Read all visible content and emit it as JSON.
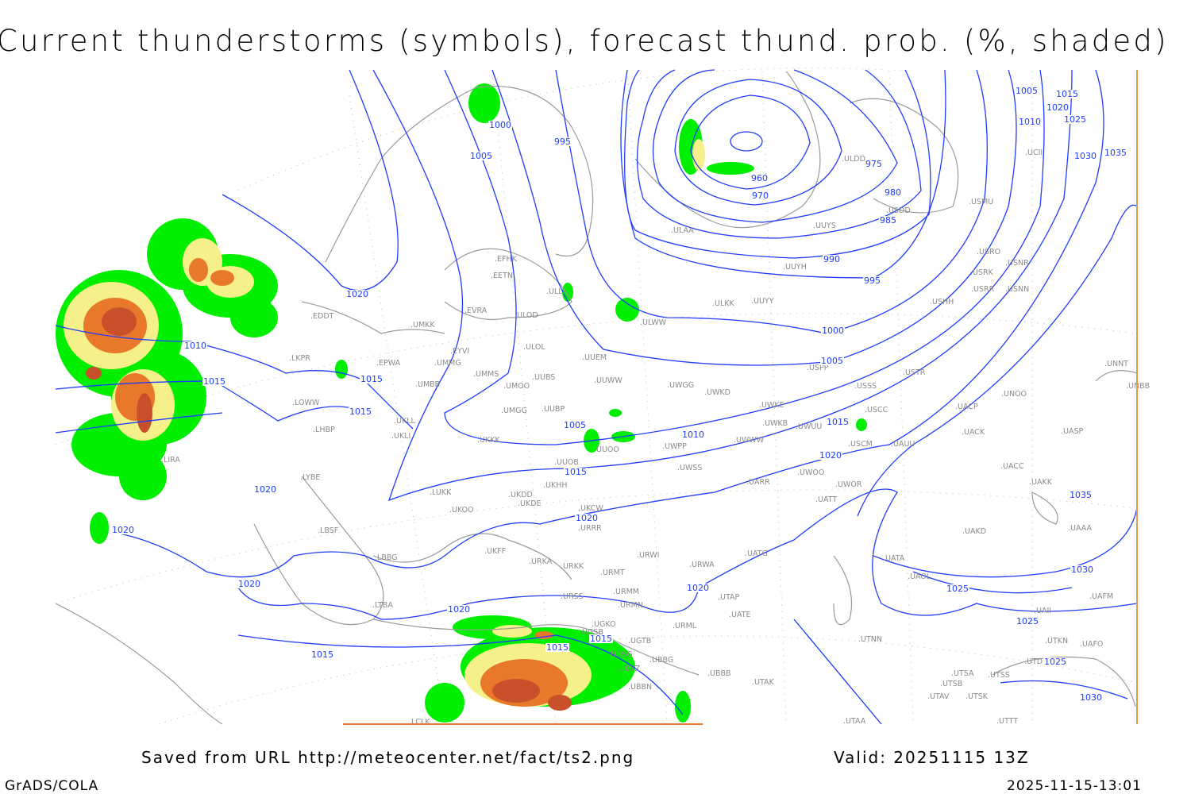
{
  "title": "Current thunderstorms (symbols), forecast thund. prob. (%, shaded)",
  "footer": {
    "saved": "Saved from URL http://meteocenter.net/fact/ts2.png",
    "valid": "Valid: 20251115 13Z",
    "software": "GrADS/COLA",
    "timestamp": "2025-11-15-13:01"
  },
  "colors": {
    "isobar": "#1f3cff",
    "coastline": "#9a9a9a",
    "prob_low": "#00ee00",
    "prob_mid": "#f5f08a",
    "prob_high": "#e8782a",
    "prob_max": "#c8502a"
  },
  "isobar_labels": [
    "1000",
    "1005",
    "995",
    "1020",
    "1010",
    "1015",
    "1015",
    "1015",
    "1020",
    "1020",
    "1020",
    "1005",
    "1010",
    "1015",
    "1020",
    "1015",
    "1020",
    "1005",
    "1000",
    "995",
    "990",
    "985",
    "980",
    "975",
    "970",
    "960",
    "1005",
    "1015",
    "1020",
    "1010",
    "1025",
    "1030",
    "1035",
    "1035",
    "1030",
    "1025",
    "1025",
    "1025",
    "1030",
    "1020",
    "1020",
    "1015",
    "1015",
    "1015"
  ],
  "stations": [
    "ULDD",
    "USDD",
    "USMU",
    "UCII",
    "ULAA",
    "UUYS",
    "UUYH",
    "USRO",
    "USRK",
    "USNR",
    "USRR",
    "USNN",
    "USHH",
    "ULLI",
    "ULWW",
    "ULKK",
    "UUYY",
    "EFHK",
    "EETN",
    "EVRA",
    "ULOD",
    "ULOL",
    "UUEM",
    "EDDT",
    "UMKK",
    "EYVI",
    "UMMG",
    "EPWA",
    "LKPR",
    "UMMS",
    "UMOO",
    "UUBS",
    "UUWW",
    "UWGG",
    "UWKD",
    "USPP",
    "USTR",
    "USSS",
    "UNOO",
    "UACP",
    "UNNT",
    "UNBB",
    "LOWW",
    "UMBB",
    "LHBP",
    "UKLL",
    "UKLI",
    "UMGG",
    "UUBP",
    "UWKE",
    "UWKB",
    "UWUU",
    "USCC",
    "UACK",
    "UASP",
    "UKKK",
    "UUOO",
    "UWPP",
    "UWWW",
    "USCM",
    "UAUU",
    "UUOB",
    "UKHH",
    "UKDD",
    "LUKK",
    "UKOO",
    "UKDE",
    "UKCW",
    "URRR",
    "UWSS",
    "UARR",
    "UWOO",
    "UWOR",
    "UACC",
    "UAKK",
    "UATT",
    "LIRA",
    "LYBE",
    "LBSF",
    "LBBG",
    "UKFF",
    "URKA",
    "URKK",
    "URWI",
    "UATG",
    "URWA",
    "URMT",
    "URMM",
    "URSS",
    "URMN",
    "URML",
    "UATE",
    "UTAP",
    "UAKD",
    "UATA",
    "UAOL",
    "UAAA",
    "UAFM",
    "UAII",
    "UGTB",
    "UBBB",
    "UDSG",
    "UBBN",
    "UTAK",
    "UTNN",
    "UTSA",
    "UTSS",
    "UTSB",
    "UTAV",
    "UTSK",
    "UTTT",
    "UTKN",
    "UAFO",
    "UTDL",
    "UTAA",
    "LTBA",
    "LCLK",
    "UGSB",
    "UDYZ",
    "UBBG",
    "UGKO"
  ]
}
